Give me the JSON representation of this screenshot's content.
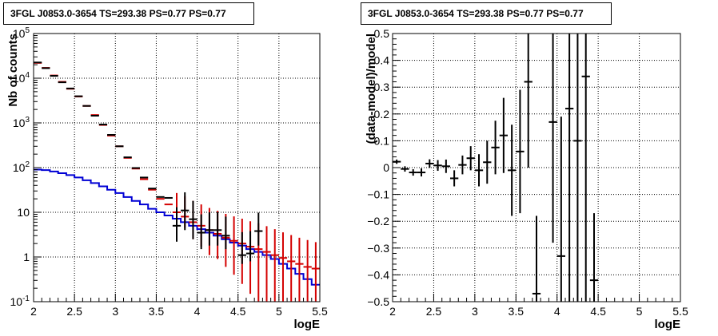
{
  "chart_data": [
    {
      "type": "histogram",
      "title": "3FGL J0853.0-3654 TS=293.38 PS=0.77 PS=0.77",
      "xlabel": "logE",
      "ylabel": "Nb of counts",
      "xlim": [
        2,
        5.5
      ],
      "ylim": [
        0.1,
        100000
      ],
      "yscale": "log",
      "grid": true,
      "x_ticks": [
        "2",
        "2.5",
        "3",
        "3.5",
        "4",
        "4.5",
        "5",
        "5.5"
      ],
      "y_ticks": [
        "10^{-1}",
        "1",
        "10",
        "10^{2}",
        "10^{3}",
        "10^{4}",
        "10^{5}"
      ],
      "model_color": "#d40000",
      "data_color": "#000000",
      "background_color": "#0000d4",
      "bin_centers": [
        2.05,
        2.15,
        2.25,
        2.35,
        2.45,
        2.55,
        2.65,
        2.75,
        2.85,
        2.95,
        3.05,
        3.15,
        3.25,
        3.35,
        3.45,
        3.55,
        3.65,
        3.75,
        3.85,
        3.95,
        4.05,
        4.15,
        4.25,
        4.35,
        4.45,
        4.55,
        4.65,
        4.75,
        4.85,
        4.95,
        5.05,
        5.15,
        5.25,
        5.35,
        5.45
      ],
      "model_counts": [
        22000,
        17000,
        11500,
        8300,
        5800,
        3900,
        2400,
        1500,
        900,
        520,
        300,
        165,
        95,
        55,
        32,
        20,
        15,
        10,
        8,
        6,
        5,
        4,
        3.3,
        2.7,
        2.3,
        2.0,
        1.7,
        1.5,
        1.3,
        1.1,
        0.95,
        0.8,
        0.7,
        0.6,
        0.55
      ],
      "model_err_lo": [
        null,
        null,
        null,
        null,
        null,
        null,
        null,
        null,
        null,
        null,
        null,
        null,
        null,
        null,
        null,
        null,
        null,
        3,
        3.5,
        3.5,
        3.3,
        2.9,
        2.4,
        2.1,
        1.9,
        1.75,
        1.55,
        1.4,
        1.25,
        1.1,
        0.95,
        0.8,
        0.7,
        0.6,
        0.55
      ],
      "model_err_hi": [
        null,
        null,
        null,
        null,
        null,
        null,
        null,
        null,
        null,
        null,
        null,
        null,
        null,
        null,
        null,
        null,
        null,
        17,
        15,
        12,
        10,
        8.5,
        7.5,
        6.5,
        5.8,
        5.2,
        4.6,
        4.2,
        3.6,
        3.1,
        2.6,
        2.3,
        2.0,
        1.8,
        1.6
      ],
      "data_counts": [
        22500,
        16800,
        11300,
        8100,
        5900,
        3950,
        2400,
        1450,
        920,
        540,
        300,
        170,
        98,
        60,
        34,
        22,
        21,
        5,
        11,
        7,
        3.5,
        4,
        4,
        3,
        null,
        1.1,
        1.2,
        3.8,
        null,
        null,
        null,
        null,
        null,
        null,
        null
      ],
      "data_err_lo": [
        null,
        null,
        null,
        null,
        null,
        null,
        null,
        null,
        null,
        null,
        null,
        null,
        null,
        null,
        null,
        null,
        null,
        2.8,
        7,
        4.5,
        2,
        2.2,
        2.2,
        1.5,
        null,
        0.4,
        0.4,
        2,
        null,
        null,
        null,
        null,
        null,
        null,
        null
      ],
      "data_err_hi": [
        null,
        null,
        null,
        null,
        null,
        null,
        null,
        null,
        null,
        null,
        null,
        null,
        null,
        null,
        null,
        null,
        null,
        8,
        17,
        11,
        5.5,
        6,
        6,
        5,
        null,
        2.5,
        2.6,
        6,
        null,
        null,
        null,
        null,
        null,
        null,
        null
      ],
      "background_counts": [
        90,
        88,
        82,
        75,
        68,
        60,
        52,
        45,
        38,
        32,
        27,
        22,
        18,
        15,
        12,
        10,
        8.5,
        7.2,
        6.0,
        5.0,
        4.2,
        3.5,
        3.0,
        2.5,
        2.1,
        1.8,
        1.5,
        1.3,
        1.1,
        0.9,
        0.7,
        0.55,
        0.42,
        0.32,
        0.24
      ]
    },
    {
      "type": "scatter",
      "title": "3FGL J0853.0-3654 TS=293.38 PS=0.77 PS=0.77",
      "xlabel": "logE",
      "ylabel": "(data-model)/model",
      "xlim": [
        2,
        5.5
      ],
      "ylim": [
        -0.5,
        0.5
      ],
      "grid": true,
      "x_ticks": [
        "2",
        "2.5",
        "3",
        "3.5",
        "4",
        "4.5",
        "5",
        "5.5"
      ],
      "y_ticks": [
        "-0.5",
        "-0.4",
        "-0.3",
        "-0.2",
        "-0.1",
        "0",
        "0.1",
        "0.2",
        "0.3",
        "0.4",
        "0.5"
      ],
      "points": [
        {
          "x": 2.05,
          "y": 0.022,
          "err": 0.008
        },
        {
          "x": 2.15,
          "y": -0.005,
          "err": 0.01
        },
        {
          "x": 2.25,
          "y": -0.018,
          "err": 0.012
        },
        {
          "x": 2.35,
          "y": -0.018,
          "err": 0.015
        },
        {
          "x": 2.45,
          "y": 0.015,
          "err": 0.016
        },
        {
          "x": 2.55,
          "y": 0.008,
          "err": 0.02
        },
        {
          "x": 2.65,
          "y": 0.005,
          "err": 0.025
        },
        {
          "x": 2.75,
          "y": -0.04,
          "err": 0.03
        },
        {
          "x": 2.85,
          "y": 0.01,
          "err": 0.035
        },
        {
          "x": 2.95,
          "y": 0.035,
          "err": 0.045
        },
        {
          "x": 3.05,
          "y": -0.01,
          "err": 0.06
        },
        {
          "x": 3.15,
          "y": 0.02,
          "err": 0.08
        },
        {
          "x": 3.25,
          "y": 0.075,
          "err": 0.1
        },
        {
          "x": 3.35,
          "y": 0.12,
          "err": 0.14
        },
        {
          "x": 3.45,
          "y": -0.01,
          "err": 0.17
        },
        {
          "x": 3.55,
          "y": 0.06,
          "err": 0.23
        },
        {
          "x": 3.65,
          "y": 0.32,
          "err": 0.32
        },
        {
          "x": 3.75,
          "y": -0.47,
          "err": 0.29
        },
        {
          "x": 3.95,
          "y": 0.17,
          "err": 0.45
        },
        {
          "x": 4.05,
          "y": -0.33,
          "err": 0.52
        },
        {
          "x": 4.15,
          "y": 0.22,
          "err": 0.9
        },
        {
          "x": 4.25,
          "y": 0.1,
          "err": 0.9
        },
        {
          "x": 4.35,
          "y": 0.34,
          "err": 1.0
        },
        {
          "x": 4.45,
          "y": -0.42,
          "err": 0.25
        }
      ]
    }
  ]
}
